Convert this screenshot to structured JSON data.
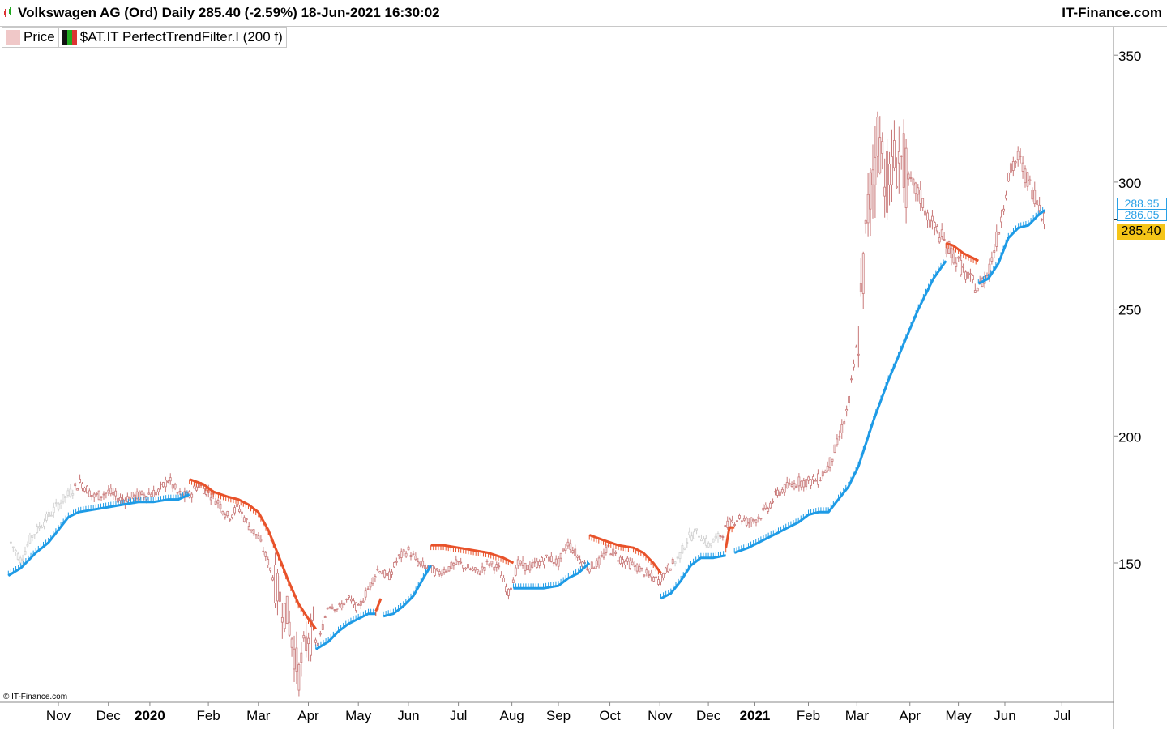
{
  "header": {
    "title": "Volkswagen AG (Ord) Daily 285.40 (-2.59%) 18-Jun-2021 16:30:02",
    "brand": "IT-Finance.com"
  },
  "legend": {
    "price_label": "Price",
    "indicator_label": "$AT.IT PerfectTrendFilter.I (200 f)"
  },
  "footer": {
    "copyright": "© IT-Finance.com"
  },
  "price_tags": {
    "last": "285.40",
    "indicator_1": "288.95",
    "indicator_2": "286.05"
  },
  "colors": {
    "up_trend": "#1e9be6",
    "down_trend": "#e8522a",
    "candle": "#c87878",
    "candle_light": "#d0d0d0",
    "last_price_bg": "#f5c518"
  },
  "chart_data": {
    "type": "line",
    "title": "Volkswagen AG (Ord) Daily",
    "ylim": [
      100,
      358
    ],
    "yticks": [
      150,
      200,
      250,
      300,
      350
    ],
    "x_ticks": [
      {
        "label": "Nov",
        "t": 0.0,
        "bold": false
      },
      {
        "label": "Dec",
        "t": 1.0,
        "bold": false
      },
      {
        "label": "2020",
        "t": 1.83,
        "bold": true
      },
      {
        "label": "Feb",
        "t": 3.0,
        "bold": false
      },
      {
        "label": "Mar",
        "t": 4.0,
        "bold": false
      },
      {
        "label": "Apr",
        "t": 5.0,
        "bold": false
      },
      {
        "label": "May",
        "t": 6.0,
        "bold": false
      },
      {
        "label": "Jun",
        "t": 7.0,
        "bold": false
      },
      {
        "label": "Jul",
        "t": 8.0,
        "bold": false
      },
      {
        "label": "Aug",
        "t": 9.07,
        "bold": false
      },
      {
        "label": "Sep",
        "t": 10.0,
        "bold": false
      },
      {
        "label": "Oct",
        "t": 11.03,
        "bold": false
      },
      {
        "label": "Nov",
        "t": 12.03,
        "bold": false
      },
      {
        "label": "Dec",
        "t": 13.0,
        "bold": false
      },
      {
        "label": "2021",
        "t": 13.93,
        "bold": true
      },
      {
        "label": "Feb",
        "t": 15.0,
        "bold": false
      },
      {
        "label": "Mar",
        "t": 15.97,
        "bold": false
      },
      {
        "label": "Apr",
        "t": 17.03,
        "bold": false
      },
      {
        "label": "May",
        "t": 18.0,
        "bold": false
      },
      {
        "label": "Jun",
        "t": 18.93,
        "bold": false
      },
      {
        "label": "Jul",
        "t": 20.07,
        "bold": false
      }
    ],
    "series": [
      {
        "role": "price",
        "style": "candles",
        "points": [
          [
            -0.95,
            158
          ],
          [
            -0.75,
            151
          ],
          [
            -0.55,
            160
          ],
          [
            -0.3,
            166
          ],
          [
            0.0,
            173
          ],
          [
            0.25,
            178
          ],
          [
            0.45,
            182
          ],
          [
            0.7,
            176
          ],
          [
            1.0,
            178
          ],
          [
            1.25,
            175
          ],
          [
            1.5,
            176
          ],
          [
            1.75,
            177
          ],
          [
            2.0,
            178
          ],
          [
            2.2,
            183
          ],
          [
            2.4,
            177
          ],
          [
            2.6,
            176
          ],
          [
            2.8,
            181
          ],
          [
            3.0,
            178
          ],
          [
            3.2,
            174
          ],
          [
            3.4,
            168
          ],
          [
            3.6,
            172
          ],
          [
            3.8,
            165
          ],
          [
            4.0,
            160
          ],
          [
            4.2,
            150
          ],
          [
            4.4,
            138
          ],
          [
            4.6,
            128
          ],
          [
            4.8,
            106
          ],
          [
            5.0,
            122
          ],
          [
            5.2,
            118
          ],
          [
            5.4,
            134
          ],
          [
            5.6,
            132
          ],
          [
            5.8,
            136
          ],
          [
            6.0,
            132
          ],
          [
            6.2,
            140
          ],
          [
            6.4,
            148
          ],
          [
            6.6,
            144
          ],
          [
            6.8,
            152
          ],
          [
            7.0,
            155
          ],
          [
            7.2,
            150
          ],
          [
            7.4,
            148
          ],
          [
            7.6,
            146
          ],
          [
            7.8,
            148
          ],
          [
            8.0,
            150
          ],
          [
            8.2,
            148
          ],
          [
            8.4,
            146
          ],
          [
            8.6,
            150
          ],
          [
            8.8,
            148
          ],
          [
            9.0,
            138
          ],
          [
            9.2,
            150
          ],
          [
            9.4,
            148
          ],
          [
            9.6,
            150
          ],
          [
            9.8,
            152
          ],
          [
            10.0,
            150
          ],
          [
            10.2,
            158
          ],
          [
            10.4,
            152
          ],
          [
            10.6,
            148
          ],
          [
            10.8,
            150
          ],
          [
            11.0,
            156
          ],
          [
            11.2,
            152
          ],
          [
            11.4,
            150
          ],
          [
            11.6,
            148
          ],
          [
            11.8,
            145
          ],
          [
            12.0,
            143
          ],
          [
            12.2,
            148
          ],
          [
            12.4,
            152
          ],
          [
            12.6,
            160
          ],
          [
            12.8,
            162
          ],
          [
            13.0,
            157
          ],
          [
            13.2,
            160
          ],
          [
            13.4,
            165
          ],
          [
            13.6,
            168
          ],
          [
            13.8,
            166
          ],
          [
            14.0,
            168
          ],
          [
            14.2,
            172
          ],
          [
            14.4,
            178
          ],
          [
            14.6,
            180
          ],
          [
            14.8,
            182
          ],
          [
            15.0,
            182
          ],
          [
            15.2,
            183
          ],
          [
            15.4,
            188
          ],
          [
            15.6,
            198
          ],
          [
            15.8,
            212
          ],
          [
            16.0,
            240
          ],
          [
            16.2,
            290
          ],
          [
            16.4,
            320
          ],
          [
            16.6,
            298
          ],
          [
            16.8,
            312
          ],
          [
            17.0,
            300
          ],
          [
            17.2,
            296
          ],
          [
            17.4,
            286
          ],
          [
            17.6,
            280
          ],
          [
            17.8,
            274
          ],
          [
            18.0,
            268
          ],
          [
            18.2,
            262
          ],
          [
            18.4,
            258
          ],
          [
            18.6,
            265
          ],
          [
            18.8,
            280
          ],
          [
            19.0,
            302
          ],
          [
            19.2,
            310
          ],
          [
            19.4,
            300
          ],
          [
            19.6,
            292
          ],
          [
            19.73,
            285.4
          ]
        ]
      },
      {
        "role": "indicator",
        "style": "step-line",
        "segments": [
          {
            "trend": "up",
            "points": [
              [
                -1.0,
                145
              ],
              [
                -0.75,
                148
              ],
              [
                -0.45,
                154
              ],
              [
                -0.2,
                158
              ],
              [
                0.0,
                163
              ],
              [
                0.2,
                168
              ],
              [
                0.4,
                170
              ],
              [
                0.7,
                171
              ],
              [
                1.0,
                172
              ],
              [
                1.3,
                173
              ],
              [
                1.6,
                174
              ],
              [
                1.9,
                174
              ],
              [
                2.2,
                175
              ],
              [
                2.4,
                175
              ],
              [
                2.62,
                177
              ]
            ]
          },
          {
            "trend": "down",
            "points": [
              [
                2.62,
                183
              ],
              [
                2.9,
                181
              ],
              [
                3.1,
                178
              ],
              [
                3.4,
                176
              ],
              [
                3.6,
                175
              ],
              [
                3.8,
                173
              ],
              [
                4.0,
                170
              ],
              [
                4.2,
                163
              ],
              [
                4.4,
                153
              ],
              [
                4.6,
                143
              ],
              [
                4.8,
                134
              ],
              [
                5.0,
                128
              ],
              [
                5.15,
                124
              ]
            ]
          },
          {
            "trend": "up",
            "points": [
              [
                5.15,
                116
              ],
              [
                5.4,
                119
              ],
              [
                5.6,
                123
              ],
              [
                5.8,
                126
              ],
              [
                6.0,
                128
              ],
              [
                6.2,
                130
              ],
              [
                6.35,
                130
              ]
            ]
          },
          {
            "trend": "down",
            "points": [
              [
                6.35,
                131
              ],
              [
                6.45,
                136
              ]
            ]
          },
          {
            "trend": "up",
            "points": [
              [
                6.5,
                129
              ],
              [
                6.7,
                130
              ],
              [
                6.9,
                133
              ],
              [
                7.1,
                137
              ],
              [
                7.3,
                144
              ],
              [
                7.45,
                149
              ]
            ]
          },
          {
            "trend": "down",
            "points": [
              [
                7.45,
                157
              ],
              [
                7.7,
                157
              ],
              [
                8.0,
                156
              ],
              [
                8.3,
                155
              ],
              [
                8.6,
                154
              ],
              [
                8.9,
                152
              ],
              [
                9.1,
                150
              ]
            ]
          },
          {
            "trend": "up",
            "points": [
              [
                9.1,
                140
              ],
              [
                9.4,
                140
              ],
              [
                9.7,
                140
              ],
              [
                10.0,
                141
              ],
              [
                10.2,
                144
              ],
              [
                10.4,
                146
              ],
              [
                10.62,
                150
              ]
            ]
          },
          {
            "trend": "down",
            "points": [
              [
                10.62,
                161
              ],
              [
                10.9,
                159
              ],
              [
                11.2,
                157
              ],
              [
                11.5,
                156
              ],
              [
                11.7,
                154
              ],
              [
                11.9,
                150
              ],
              [
                12.05,
                146
              ]
            ]
          },
          {
            "trend": "up",
            "points": [
              [
                12.05,
                136
              ],
              [
                12.25,
                138
              ],
              [
                12.45,
                143
              ],
              [
                12.65,
                149
              ],
              [
                12.85,
                152
              ],
              [
                13.1,
                152
              ],
              [
                13.35,
                153
              ]
            ]
          },
          {
            "trend": "down",
            "points": [
              [
                13.35,
                156
              ],
              [
                13.42,
                164
              ],
              [
                13.52,
                164
              ]
            ]
          },
          {
            "trend": "up",
            "points": [
              [
                13.52,
                154
              ],
              [
                13.8,
                156
              ],
              [
                14.0,
                158
              ],
              [
                14.2,
                160
              ],
              [
                14.4,
                162
              ],
              [
                14.6,
                164
              ],
              [
                14.8,
                166
              ],
              [
                15.0,
                169
              ],
              [
                15.2,
                170
              ],
              [
                15.4,
                170
              ],
              [
                15.6,
                175
              ],
              [
                15.8,
                180
              ],
              [
                16.0,
                188
              ],
              [
                16.3,
                206
              ],
              [
                16.6,
                222
              ],
              [
                16.9,
                236
              ],
              [
                17.2,
                250
              ],
              [
                17.5,
                262
              ],
              [
                17.75,
                269
              ]
            ]
          },
          {
            "trend": "down",
            "points": [
              [
                17.75,
                276
              ],
              [
                17.9,
                275
              ],
              [
                18.1,
                272
              ],
              [
                18.3,
                270
              ],
              [
                18.4,
                269
              ]
            ]
          },
          {
            "trend": "up",
            "points": [
              [
                18.4,
                260
              ],
              [
                18.6,
                262
              ],
              [
                18.8,
                268
              ],
              [
                19.0,
                278
              ],
              [
                19.2,
                282
              ],
              [
                19.4,
                283
              ],
              [
                19.6,
                287
              ],
              [
                19.73,
                289
              ]
            ]
          }
        ]
      }
    ]
  }
}
